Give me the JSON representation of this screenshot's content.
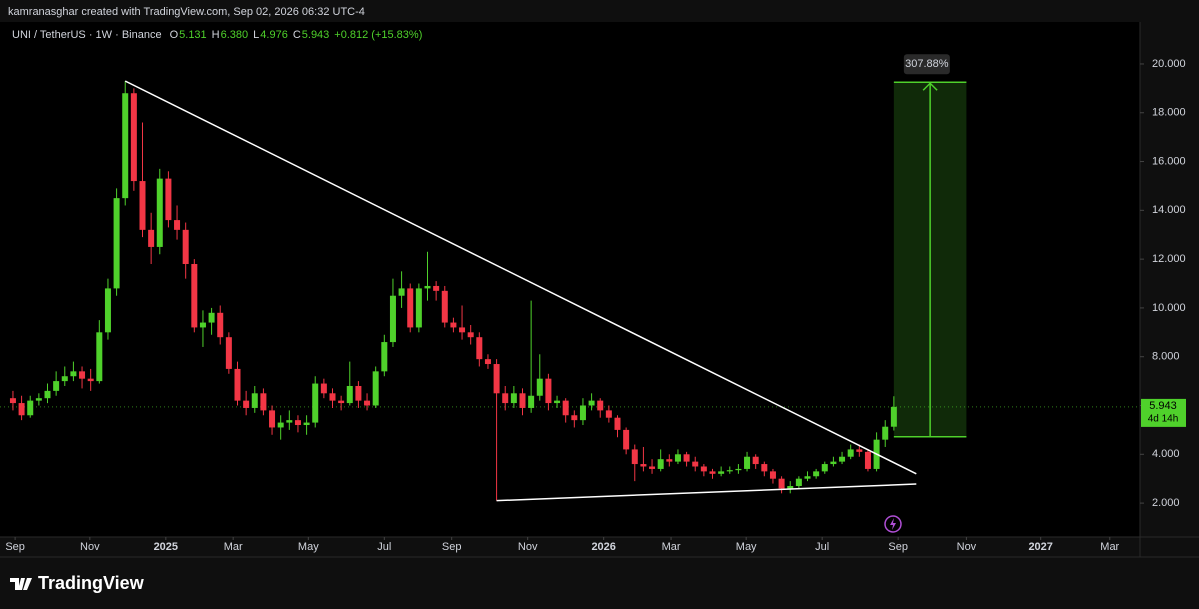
{
  "header": {
    "attribution": "kamranasghar created with TradingView.com, Sep 02, 2026 06:32 UTC-4",
    "symbol": "UNI / TetherUS · 1W · Binance",
    "ohlc": [
      {
        "label": "O",
        "value": "5.131"
      },
      {
        "label": "H",
        "value": "6.380"
      },
      {
        "label": "L",
        "value": "4.976"
      },
      {
        "label": "C",
        "value": "5.943"
      }
    ],
    "change": "+0.812 (+15.83%)"
  },
  "brand": "TradingView",
  "chart_data": {
    "type": "candlestick",
    "up_color": "#4fd12b",
    "down_color": "#f23645",
    "ohlc": [
      [
        6.3,
        6.6,
        5.8,
        6.1
      ],
      [
        6.1,
        6.4,
        5.4,
        5.6
      ],
      [
        5.6,
        6.4,
        5.5,
        6.2
      ],
      [
        6.2,
        6.5,
        6.0,
        6.3
      ],
      [
        6.3,
        6.9,
        6.1,
        6.6
      ],
      [
        6.6,
        7.4,
        6.4,
        7.0
      ],
      [
        7.0,
        7.6,
        6.8,
        7.2
      ],
      [
        7.2,
        7.8,
        7.0,
        7.4
      ],
      [
        7.4,
        7.6,
        6.7,
        7.1
      ],
      [
        7.1,
        7.5,
        6.6,
        7.0
      ],
      [
        7.0,
        9.5,
        6.9,
        9.0
      ],
      [
        9.0,
        11.2,
        8.7,
        10.8
      ],
      [
        10.8,
        14.9,
        10.5,
        14.5
      ],
      [
        14.5,
        19.3,
        14.2,
        18.8
      ],
      [
        18.8,
        19.0,
        14.8,
        15.2
      ],
      [
        15.2,
        17.6,
        12.9,
        13.2
      ],
      [
        13.2,
        13.9,
        11.8,
        12.5
      ],
      [
        12.5,
        15.7,
        12.2,
        15.3
      ],
      [
        15.3,
        15.6,
        13.3,
        13.6
      ],
      [
        13.6,
        14.2,
        12.8,
        13.2
      ],
      [
        13.2,
        13.5,
        11.2,
        11.8
      ],
      [
        11.8,
        12.0,
        9.0,
        9.2
      ],
      [
        9.2,
        9.9,
        8.4,
        9.4
      ],
      [
        9.4,
        10.0,
        8.9,
        9.8
      ],
      [
        9.8,
        10.1,
        8.5,
        8.8
      ],
      [
        8.8,
        9.0,
        7.3,
        7.5
      ],
      [
        7.5,
        7.8,
        6.0,
        6.2
      ],
      [
        6.2,
        6.6,
        5.6,
        5.9
      ],
      [
        5.9,
        6.8,
        5.7,
        6.5
      ],
      [
        6.5,
        6.7,
        5.6,
        5.8
      ],
      [
        5.8,
        6.0,
        4.8,
        5.1
      ],
      [
        5.1,
        5.6,
        4.6,
        5.3
      ],
      [
        5.3,
        5.8,
        5.0,
        5.4
      ],
      [
        5.4,
        5.6,
        4.9,
        5.2
      ],
      [
        5.2,
        5.6,
        4.8,
        5.3
      ],
      [
        5.3,
        7.2,
        5.1,
        6.9
      ],
      [
        6.9,
        7.1,
        6.3,
        6.5
      ],
      [
        6.5,
        6.7,
        5.9,
        6.2
      ],
      [
        6.2,
        6.4,
        5.8,
        6.1
      ],
      [
        6.1,
        7.8,
        6.0,
        6.8
      ],
      [
        6.8,
        7.0,
        5.9,
        6.2
      ],
      [
        6.2,
        6.5,
        5.8,
        6.0
      ],
      [
        6.0,
        7.6,
        5.9,
        7.4
      ],
      [
        7.4,
        8.9,
        7.2,
        8.6
      ],
      [
        8.6,
        11.2,
        8.4,
        10.5
      ],
      [
        10.5,
        11.5,
        10.0,
        10.8
      ],
      [
        10.8,
        11.0,
        9.0,
        9.2
      ],
      [
        9.2,
        11.0,
        9.0,
        10.8
      ],
      [
        10.8,
        12.3,
        10.3,
        10.9
      ],
      [
        10.9,
        11.1,
        10.3,
        10.7
      ],
      [
        10.7,
        10.9,
        9.2,
        9.4
      ],
      [
        9.4,
        9.6,
        9.0,
        9.2
      ],
      [
        9.2,
        10.1,
        8.7,
        9.0
      ],
      [
        9.0,
        9.3,
        8.5,
        8.8
      ],
      [
        8.8,
        9.0,
        7.6,
        7.9
      ],
      [
        7.9,
        8.1,
        7.5,
        7.7
      ],
      [
        7.7,
        7.9,
        2.1,
        6.5
      ],
      [
        6.5,
        6.8,
        5.8,
        6.1
      ],
      [
        6.1,
        6.8,
        5.9,
        6.5
      ],
      [
        6.5,
        6.7,
        5.6,
        5.9
      ],
      [
        5.9,
        10.3,
        5.7,
        6.4
      ],
      [
        6.4,
        8.1,
        6.2,
        7.1
      ],
      [
        7.1,
        7.3,
        5.8,
        6.1
      ],
      [
        6.1,
        6.4,
        5.9,
        6.2
      ],
      [
        6.2,
        6.3,
        5.3,
        5.6
      ],
      [
        5.6,
        5.8,
        5.1,
        5.4
      ],
      [
        5.4,
        6.3,
        5.2,
        6.0
      ],
      [
        6.0,
        6.5,
        5.8,
        6.2
      ],
      [
        6.2,
        6.3,
        5.5,
        5.8
      ],
      [
        5.8,
        6.0,
        5.3,
        5.5
      ],
      [
        5.5,
        5.6,
        4.7,
        5.0
      ],
      [
        5.0,
        5.1,
        4.0,
        4.2
      ],
      [
        4.2,
        4.4,
        2.9,
        3.6
      ],
      [
        3.6,
        4.3,
        3.3,
        3.5
      ],
      [
        3.5,
        3.8,
        3.2,
        3.4
      ],
      [
        3.4,
        4.2,
        3.3,
        3.8
      ],
      [
        3.8,
        4.0,
        3.5,
        3.7
      ],
      [
        3.7,
        4.2,
        3.6,
        4.0
      ],
      [
        4.0,
        4.1,
        3.5,
        3.7
      ],
      [
        3.7,
        3.9,
        3.3,
        3.5
      ],
      [
        3.5,
        3.6,
        3.1,
        3.3
      ],
      [
        3.3,
        3.4,
        3.0,
        3.2
      ],
      [
        3.2,
        3.5,
        3.1,
        3.3
      ],
      [
        3.3,
        3.5,
        3.2,
        3.35
      ],
      [
        3.35,
        3.6,
        3.2,
        3.4
      ],
      [
        3.4,
        4.1,
        3.3,
        3.9
      ],
      [
        3.9,
        4.0,
        3.4,
        3.6
      ],
      [
        3.6,
        3.7,
        3.1,
        3.3
      ],
      [
        3.3,
        3.4,
        2.8,
        3.0
      ],
      [
        3.0,
        3.1,
        2.4,
        2.6
      ],
      [
        2.6,
        2.9,
        2.4,
        2.7
      ],
      [
        2.7,
        3.1,
        2.6,
        3.0
      ],
      [
        3.0,
        3.3,
        2.9,
        3.1
      ],
      [
        3.1,
        3.4,
        3.0,
        3.3
      ],
      [
        3.3,
        3.7,
        3.2,
        3.6
      ],
      [
        3.6,
        3.9,
        3.5,
        3.7
      ],
      [
        3.7,
        4.1,
        3.6,
        3.9
      ],
      [
        3.9,
        4.4,
        3.8,
        4.2
      ],
      [
        4.2,
        4.4,
        3.9,
        4.1
      ],
      [
        4.1,
        4.2,
        3.3,
        3.4
      ],
      [
        3.4,
        4.9,
        3.3,
        4.6
      ],
      [
        4.6,
        5.4,
        4.3,
        5.131
      ],
      [
        5.131,
        6.38,
        4.976,
        5.943
      ]
    ],
    "xlim": [
      -1.5,
      130.5
    ],
    "xticks": [
      {
        "value": 0.25,
        "label": "Sep"
      },
      {
        "value": 8.9,
        "label": "Nov"
      },
      {
        "value": 17.7,
        "label": "2025"
      },
      {
        "value": 25.5,
        "label": "Mar"
      },
      {
        "value": 34.2,
        "label": "May"
      },
      {
        "value": 43,
        "label": "Jul"
      },
      {
        "value": 50.8,
        "label": "Sep"
      },
      {
        "value": 59.6,
        "label": "Nov"
      },
      {
        "value": 68.4,
        "label": "2026"
      },
      {
        "value": 76.2,
        "label": "Mar"
      },
      {
        "value": 84.9,
        "label": "May"
      },
      {
        "value": 93.7,
        "label": "Jul"
      },
      {
        "value": 102.5,
        "label": "Sep"
      },
      {
        "value": 110.4,
        "label": "Nov"
      },
      {
        "value": 119,
        "label": "2027"
      },
      {
        "value": 127,
        "label": "Mar"
      }
    ],
    "ylim": [
      0.61,
      21.72
    ],
    "yticks": [
      {
        "value": 2,
        "label": "2.000"
      },
      {
        "value": 4,
        "label": "4.000"
      },
      {
        "value": 6,
        "label": "6.000"
      },
      {
        "value": 8,
        "label": "8.000"
      },
      {
        "value": 10,
        "label": "10.000"
      },
      {
        "value": 12,
        "label": "12.000"
      },
      {
        "value": 14,
        "label": "14.000"
      },
      {
        "value": 16,
        "label": "16.000"
      },
      {
        "value": 18,
        "label": "18.000"
      },
      {
        "value": 20,
        "label": "20.000"
      }
    ],
    "last_price": 5.943,
    "countdown": "4d 14h",
    "trendlines": [
      {
        "x": [
          13,
          104.6
        ],
        "y": [
          19.3,
          3.2
        ],
        "color": "#ffffff"
      },
      {
        "x": [
          56,
          104.6
        ],
        "y": [
          2.1,
          2.78
        ],
        "color": "#ffffff"
      }
    ],
    "position": {
      "x": [
        102,
        110.4
      ],
      "entry": 4.72,
      "target": 19.25,
      "label": "307.88%",
      "color": "#4fd12b"
    }
  }
}
